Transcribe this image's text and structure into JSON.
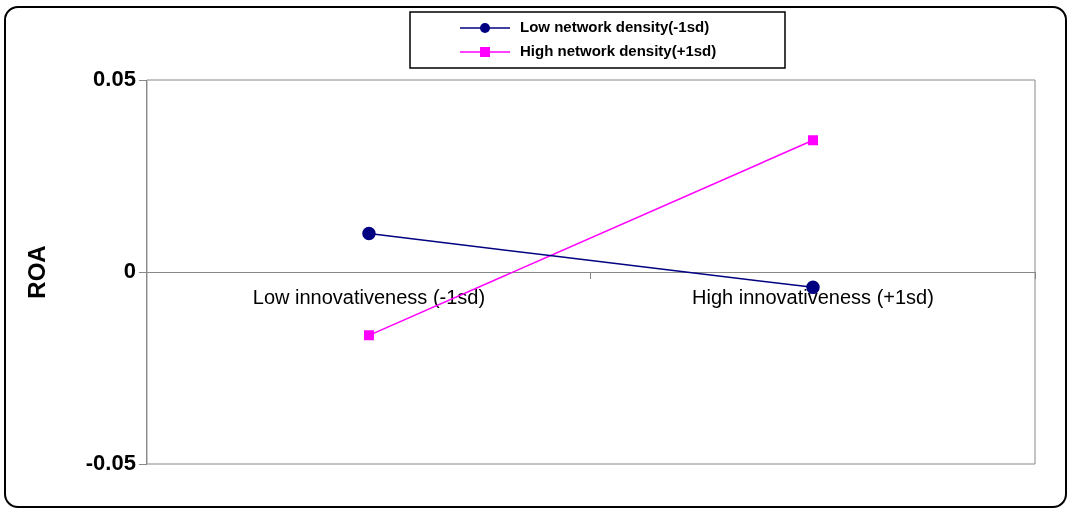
{
  "chart_data": {
    "type": "line",
    "ylabel": "ROA",
    "categories": [
      "Low innovativeness (-1sd)",
      "High innovativeness (+1sd)"
    ],
    "series": [
      {
        "name": "Low network density(-1sd)",
        "color": "#000080",
        "marker": "circle",
        "values": [
          0.01,
          -0.004
        ]
      },
      {
        "name": "High network density(+1sd)",
        "color": "#ff00ff",
        "marker": "square",
        "values": [
          -0.0165,
          0.0343
        ]
      }
    ],
    "ylim": [
      -0.05,
      0.05
    ],
    "yticks": [
      -0.05,
      0,
      0.05
    ],
    "grid": false,
    "legend": "top",
    "line_style": "solid"
  }
}
